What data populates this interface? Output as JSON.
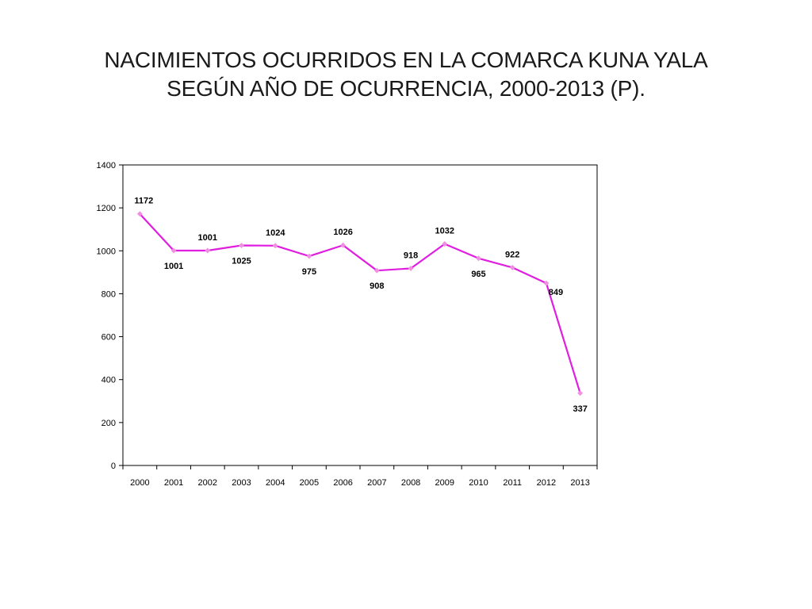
{
  "title": {
    "line1": "NACIMIENTOS OCURRIDOS EN LA COMARCA KUNA YALA",
    "line2": "SEGÚN AÑO DE OCURRENCIA, 2000-2013 (P)."
  },
  "colors": {
    "line": "#e01ee0",
    "marker": "#f090e0",
    "axis": "#000000"
  },
  "chart_data": {
    "type": "line",
    "title": "NACIMIENTOS OCURRIDOS EN LA COMARCA KUNA YALA SEGÚN AÑO DE OCURRENCIA, 2000-2013 (P).",
    "xlabel": "",
    "ylabel": "",
    "categories": [
      "2000",
      "2001",
      "2002",
      "2003",
      "2004",
      "2005",
      "2006",
      "2007",
      "2008",
      "2009",
      "2010",
      "2011",
      "2012",
      "2013"
    ],
    "series": [
      {
        "values": [
          1172,
          1001,
          1001,
          1025,
          1024,
          975,
          1026,
          908,
          918,
          1032,
          965,
          922,
          849,
          337
        ]
      }
    ],
    "data_labels": [
      "1172",
      "1001",
      "1001",
      "1025",
      "1024",
      "975",
      "1026",
      "908",
      "918",
      "1032",
      "965",
      "922",
      "849",
      "337"
    ],
    "ylim": [
      0,
      1400
    ],
    "yticks": [
      0,
      200,
      400,
      600,
      800,
      1000,
      1200,
      1400
    ],
    "ytick_labels": [
      "0",
      "200",
      "400",
      "600",
      "800",
      "1000",
      "1200",
      "1400"
    ],
    "grid": false,
    "legend": "none",
    "marker": "diamond"
  }
}
